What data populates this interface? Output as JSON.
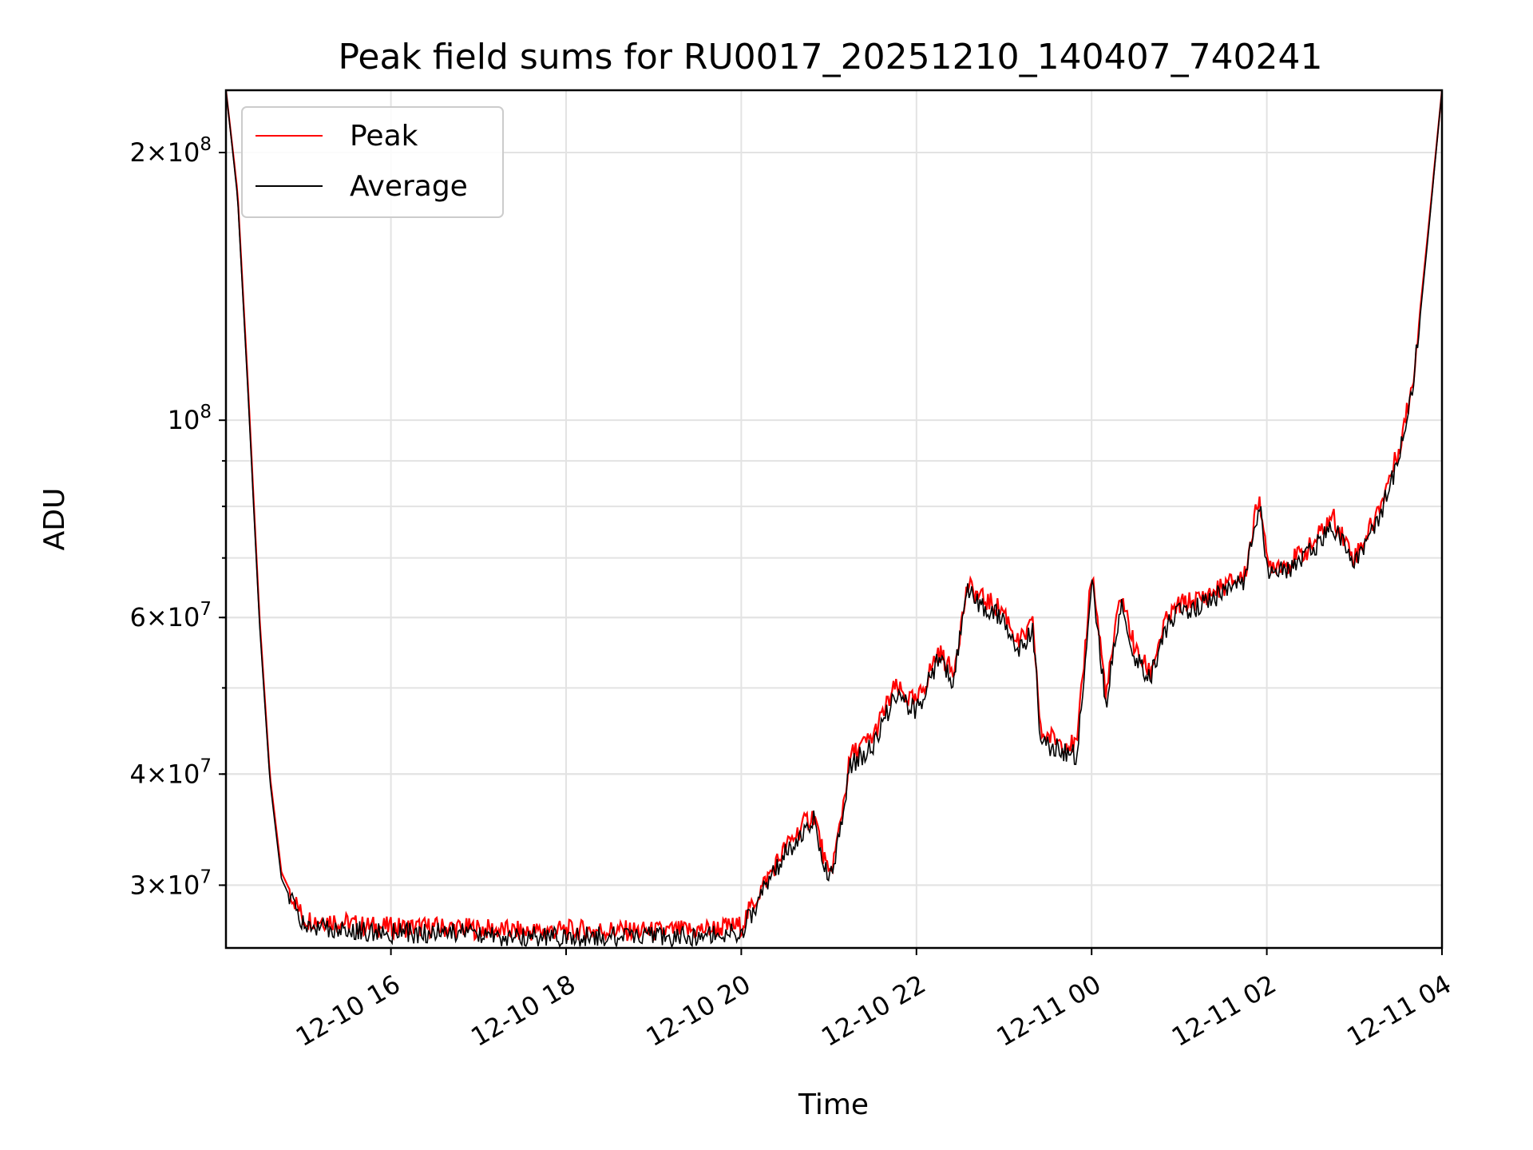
{
  "chart_data": {
    "type": "line",
    "title": "Peak field sums for RU0017_20251210_140407_740241",
    "xlabel": "Time",
    "ylabel": "ADU",
    "yscale": "log",
    "grid": true,
    "legend_position": "top-left",
    "xlim": [
      "2025-12-10 14:07",
      "2025-12-11 04:00"
    ],
    "ylim": [
      25500000,
      235000000
    ],
    "x_ticks": [
      "12-10 16",
      "12-10 18",
      "12-10 20",
      "12-10 22",
      "12-11 00",
      "12-11 02",
      "12-11 04"
    ],
    "y_ticks": [
      {
        "value": 30000000,
        "mantissa": "3",
        "exp": "7"
      },
      {
        "value": 40000000,
        "mantissa": "4",
        "exp": "7"
      },
      {
        "value": 60000000,
        "mantissa": "6",
        "exp": "7"
      },
      {
        "value": 100000000,
        "mantissa": "",
        "exp": "8"
      },
      {
        "value": 200000000,
        "mantissa": "2",
        "exp": "8"
      }
    ],
    "series": [
      {
        "name": "Peak",
        "color": "#ff0000",
        "x": [
          "2025-12-10 14:07",
          "2025-12-10 14:15",
          "2025-12-10 14:22",
          "2025-12-10 14:30",
          "2025-12-10 14:37",
          "2025-12-10 14:45",
          "2025-12-10 15:00",
          "2025-12-10 15:20",
          "2025-12-10 15:40",
          "2025-12-10 16:00",
          "2025-12-10 16:30",
          "2025-12-10 17:00",
          "2025-12-10 17:30",
          "2025-12-10 18:00",
          "2025-12-10 18:30",
          "2025-12-10 19:00",
          "2025-12-10 19:30",
          "2025-12-10 20:00",
          "2025-12-10 20:15",
          "2025-12-10 20:30",
          "2025-12-10 20:45",
          "2025-12-10 20:50",
          "2025-12-10 21:00",
          "2025-12-10 21:05",
          "2025-12-10 21:15",
          "2025-12-10 21:30",
          "2025-12-10 21:45",
          "2025-12-10 22:00",
          "2025-12-10 22:15",
          "2025-12-10 22:25",
          "2025-12-10 22:35",
          "2025-12-10 22:45",
          "2025-12-10 23:00",
          "2025-12-10 23:10",
          "2025-12-10 23:20",
          "2025-12-10 23:25",
          "2025-12-10 23:40",
          "2025-12-10 23:50",
          "2025-12-11 00:00",
          "2025-12-11 00:10",
          "2025-12-11 00:20",
          "2025-12-11 00:30",
          "2025-12-11 00:40",
          "2025-12-11 00:50",
          "2025-12-11 01:00",
          "2025-12-11 01:15",
          "2025-12-11 01:30",
          "2025-12-11 01:45",
          "2025-12-11 01:55",
          "2025-12-11 02:00",
          "2025-12-11 02:15",
          "2025-12-11 02:30",
          "2025-12-11 02:45",
          "2025-12-11 03:00",
          "2025-12-11 03:15",
          "2025-12-11 03:30",
          "2025-12-11 03:40",
          "2025-12-11 03:50",
          "2025-12-11 04:00"
        ],
        "values": [
          235000000,
          180000000,
          110000000,
          60000000,
          40000000,
          31000000,
          27500000,
          27400000,
          27000000,
          26900000,
          26900000,
          26800000,
          26600000,
          26700000,
          26700000,
          26600000,
          26700000,
          27000000,
          30000000,
          33000000,
          35500000,
          36000000,
          30500000,
          33000000,
          42000000,
          44000000,
          50000000,
          48000000,
          55000000,
          52000000,
          65000000,
          63000000,
          61000000,
          56000000,
          59000000,
          44500000,
          43500000,
          43000000,
          68000000,
          49000000,
          64000000,
          55000000,
          52000000,
          59000000,
          62000000,
          63000000,
          65000000,
          67000000,
          83000000,
          69000000,
          69000000,
          72000000,
          78000000,
          70000000,
          78000000,
          92000000,
          110000000,
          160000000,
          235000000
        ]
      },
      {
        "name": "Average",
        "color": "#000000",
        "x": [
          "2025-12-10 14:07",
          "2025-12-10 14:15",
          "2025-12-10 14:22",
          "2025-12-10 14:30",
          "2025-12-10 14:37",
          "2025-12-10 14:45",
          "2025-12-10 15:00",
          "2025-12-10 15:20",
          "2025-12-10 15:40",
          "2025-12-10 16:00",
          "2025-12-10 16:30",
          "2025-12-10 17:00",
          "2025-12-10 17:30",
          "2025-12-10 18:00",
          "2025-12-10 18:30",
          "2025-12-10 19:00",
          "2025-12-10 19:30",
          "2025-12-10 20:00",
          "2025-12-10 20:15",
          "2025-12-10 20:30",
          "2025-12-10 20:45",
          "2025-12-10 20:50",
          "2025-12-10 21:00",
          "2025-12-10 21:05",
          "2025-12-10 21:15",
          "2025-12-10 21:30",
          "2025-12-10 21:45",
          "2025-12-10 22:00",
          "2025-12-10 22:15",
          "2025-12-10 22:25",
          "2025-12-10 22:35",
          "2025-12-10 22:45",
          "2025-12-10 23:00",
          "2025-12-10 23:10",
          "2025-12-10 23:20",
          "2025-12-10 23:25",
          "2025-12-10 23:40",
          "2025-12-10 23:50",
          "2025-12-11 00:00",
          "2025-12-11 00:10",
          "2025-12-11 00:20",
          "2025-12-11 00:30",
          "2025-12-11 00:40",
          "2025-12-11 00:50",
          "2025-12-11 01:00",
          "2025-12-11 01:15",
          "2025-12-11 01:30",
          "2025-12-11 01:45",
          "2025-12-11 01:55",
          "2025-12-11 02:00",
          "2025-12-11 02:15",
          "2025-12-11 02:30",
          "2025-12-11 02:45",
          "2025-12-11 03:00",
          "2025-12-11 03:15",
          "2025-12-11 03:30",
          "2025-12-11 03:40",
          "2025-12-11 03:50",
          "2025-12-11 04:00"
        ],
        "values": [
          235000000,
          178000000,
          108000000,
          59000000,
          39500000,
          30500000,
          27000000,
          26900000,
          26600000,
          26500000,
          26500000,
          26400000,
          26200000,
          26300000,
          26300000,
          26200000,
          26300000,
          26600000,
          29500000,
          32500000,
          35000000,
          35500000,
          30000000,
          32500000,
          41000000,
          43000000,
          49000000,
          47000000,
          54000000,
          51000000,
          64000000,
          62000000,
          60000000,
          55000000,
          58000000,
          43500000,
          42500000,
          42000000,
          66000000,
          48000000,
          62000000,
          54000000,
          51000000,
          58000000,
          61000000,
          62000000,
          64000000,
          66000000,
          81000000,
          68000000,
          68000000,
          71000000,
          76000000,
          69000000,
          76000000,
          90000000,
          108000000,
          158000000,
          235000000
        ]
      }
    ]
  }
}
